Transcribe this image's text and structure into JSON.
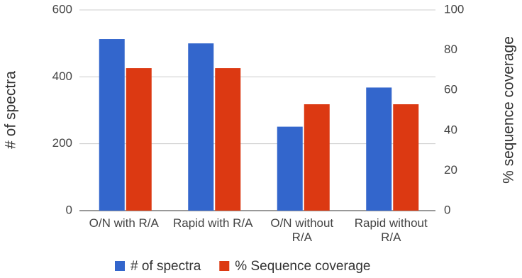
{
  "chart_data": {
    "type": "bar",
    "categories": [
      "O/N with R/A",
      "Rapid with R/A",
      "O/N without R/A",
      "Rapid without R/A"
    ],
    "series": [
      {
        "name": "# of spectra",
        "color": "#3366cc",
        "values": [
          513,
          500,
          251,
          368
        ]
      },
      {
        "name": "% Sequence coverage",
        "color": "#dc3912",
        "values": [
          71,
          71,
          53,
          53
        ],
        "axis": "y2"
      }
    ],
    "ylabel": "# of spectra",
    "y2label": "% sequence coverage",
    "ylim": [
      0,
      600
    ],
    "yticks": [
      0,
      200,
      400,
      600
    ],
    "y2lim": [
      0,
      100
    ],
    "y2ticks": [
      0,
      20,
      40,
      60,
      80,
      100
    ],
    "grid": true,
    "legend": "bottom"
  }
}
